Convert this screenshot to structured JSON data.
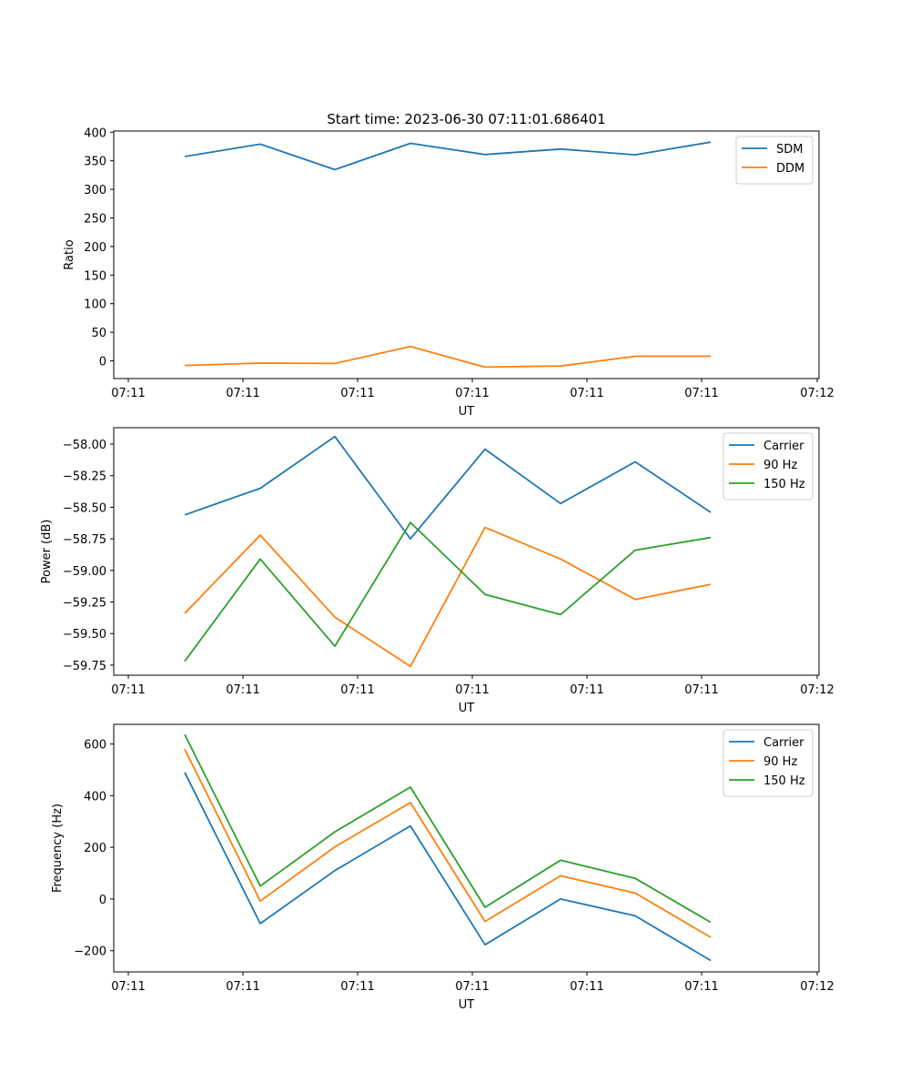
{
  "figure": {
    "title": "Start time: 2023-06-30 07:11:01.686401"
  },
  "chart_data": [
    {
      "type": "line",
      "title": "Start time: 2023-06-30 07:11:01.686401",
      "xlabel": "UT",
      "ylabel": "Ratio",
      "xticks": [
        "07:11",
        "07:11",
        "07:11",
        "07:11",
        "07:11",
        "07:11",
        "07:11"
      ],
      "yticks": [
        0,
        50,
        100,
        150,
        200,
        250,
        300,
        350,
        400
      ],
      "ylim": [
        -31,
        402
      ],
      "grid": false,
      "legend": "top-right",
      "series": [
        {
          "name": "SDM",
          "color": "#1f77b4",
          "values": [
            357.5,
            379,
            334.5,
            380.5,
            361,
            370.5,
            360.5,
            382.5
          ]
        },
        {
          "name": "DDM",
          "color": "#ff7f0e",
          "values": [
            -8,
            -4,
            -4.5,
            25,
            -11,
            -9,
            8,
            8
          ]
        }
      ]
    },
    {
      "type": "line",
      "xlabel": "UT",
      "ylabel": "Power (dB)",
      "xticks": [
        "07:11",
        "07:11",
        "07:11",
        "07:11",
        "07:11",
        "07:11",
        "07:11"
      ],
      "yticks": [
        "−59.75",
        "−59.50",
        "−59.25",
        "−59.00",
        "−58.75",
        "−58.50",
        "−58.25",
        "−58.00"
      ],
      "ylim": [
        -59.83,
        -57.87
      ],
      "grid": false,
      "legend": "top-right",
      "series": [
        {
          "name": "Carrier",
          "color": "#1f77b4",
          "values": [
            -58.56,
            -58.35,
            -57.94,
            -58.75,
            -58.04,
            -58.47,
            -58.14,
            -58.54
          ]
        },
        {
          "name": "90 Hz",
          "color": "#ff7f0e",
          "values": [
            -59.34,
            -58.72,
            -59.37,
            -59.76,
            -58.66,
            -58.91,
            -59.23,
            -59.11
          ]
        },
        {
          "name": "150 Hz",
          "color": "#2ca02c",
          "values": [
            -59.72,
            -58.91,
            -59.6,
            -58.62,
            -59.19,
            -59.35,
            -58.84,
            -58.74
          ]
        }
      ]
    },
    {
      "type": "line",
      "xlabel": "UT",
      "ylabel": "Frequency (Hz)",
      "xticks": [
        "07:11",
        "07:11",
        "07:11",
        "07:11",
        "07:11",
        "07:11",
        "07:11"
      ],
      "yticks": [
        "−200",
        "0",
        "200",
        "400",
        "600"
      ],
      "ylim": [
        -282,
        676
      ],
      "grid": false,
      "legend": "top-right",
      "series": [
        {
          "name": "Carrier",
          "color": "#1f77b4",
          "values": [
            490,
            -95,
            110,
            283,
            -177,
            0,
            -65,
            -238
          ]
        },
        {
          "name": "90 Hz",
          "color": "#ff7f0e",
          "values": [
            580,
            -8,
            202,
            373,
            -87,
            90,
            23,
            -148
          ]
        },
        {
          "name": "150 Hz",
          "color": "#2ca02c",
          "values": [
            637,
            50,
            260,
            433,
            -32,
            150,
            80,
            -90
          ]
        }
      ]
    }
  ],
  "x_ticks": [
    "07:11",
    "07:11",
    "07:11",
    "07:11",
    "07:11",
    "07:11",
    "07:12"
  ]
}
